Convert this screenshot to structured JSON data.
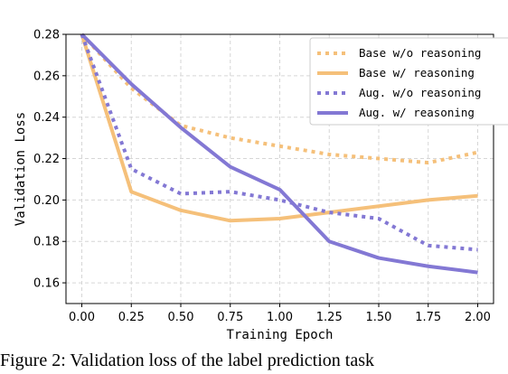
{
  "chart_data": {
    "type": "line",
    "xlabel": "Training Epoch",
    "ylabel": "Validation Loss",
    "x": [
      0.0,
      0.25,
      0.5,
      0.75,
      1.0,
      1.25,
      1.5,
      1.75,
      2.0
    ],
    "xlim": [
      -0.08,
      2.08
    ],
    "ylim": [
      0.15,
      0.28
    ],
    "xticks": [
      "0.00",
      "0.25",
      "0.50",
      "0.75",
      "1.00",
      "1.25",
      "1.50",
      "1.75",
      "2.00"
    ],
    "yticks": [
      "0.16",
      "0.18",
      "0.20",
      "0.22",
      "0.24",
      "0.26",
      "0.28"
    ],
    "grid": true,
    "legend_position": "top-right",
    "series": [
      {
        "name": "Base w/o reasoning",
        "color": "#f5c07a",
        "style": "dotted",
        "values": [
          0.28,
          0.254,
          0.236,
          0.23,
          0.226,
          0.222,
          0.22,
          0.218,
          0.223
        ]
      },
      {
        "name": "Base w/ reasoning",
        "color": "#f5c07a",
        "style": "solid",
        "values": [
          0.28,
          0.204,
          0.195,
          0.19,
          0.191,
          0.194,
          0.197,
          0.2,
          0.202
        ]
      },
      {
        "name": "Aug. w/o reasoning",
        "color": "#8378d4",
        "style": "dotted",
        "values": [
          0.28,
          0.215,
          0.203,
          0.204,
          0.2,
          0.194,
          0.191,
          0.178,
          0.176
        ]
      },
      {
        "name": "Aug. w/ reasoning",
        "color": "#8378d4",
        "style": "solid",
        "values": [
          0.28,
          0.256,
          0.235,
          0.216,
          0.205,
          0.18,
          0.172,
          0.168,
          0.165
        ]
      }
    ]
  },
  "caption": "Figure 2: Validation loss of the label prediction task"
}
